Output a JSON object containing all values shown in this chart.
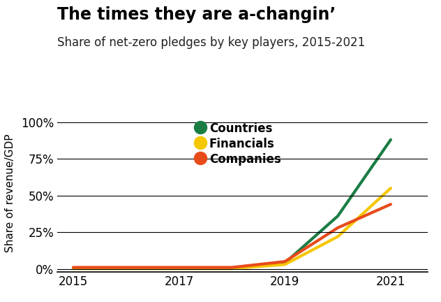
{
  "title": "The times they are a-changin’",
  "subtitle": "Share of net-zero pledges by key players, 2015-2021",
  "ylabel": "Share of revenue/GDP",
  "series": {
    "Countries": {
      "x": [
        2015,
        2016,
        2017,
        2018,
        2019,
        2020,
        2021
      ],
      "y": [
        0.5,
        0.5,
        0.5,
        0.5,
        4,
        36,
        88
      ],
      "color": "#1a7d44",
      "linewidth": 3.0
    },
    "Financials": {
      "x": [
        2015,
        2016,
        2017,
        2018,
        2019,
        2020,
        2021
      ],
      "y": [
        0.2,
        0.2,
        0.2,
        0.2,
        3,
        22,
        55
      ],
      "color": "#f5c700",
      "linewidth": 3.0
    },
    "Companies": {
      "x": [
        2015,
        2016,
        2017,
        2018,
        2019,
        2020,
        2021
      ],
      "y": [
        1.0,
        1.0,
        1.0,
        1.0,
        5,
        28,
        44
      ],
      "color": "#e84b1a",
      "linewidth": 3.0
    }
  },
  "xlim": [
    2014.7,
    2021.7
  ],
  "ylim": [
    -2,
    105
  ],
  "yticks": [
    0,
    25,
    50,
    75,
    100
  ],
  "ytick_labels": [
    "0%",
    "25%",
    "50%",
    "75%",
    "100%"
  ],
  "xticks": [
    2015,
    2017,
    2019,
    2021
  ],
  "background_color": "#ffffff",
  "title_fontsize": 17,
  "subtitle_fontsize": 12,
  "legend_order": [
    "Countries",
    "Financials",
    "Companies"
  ]
}
